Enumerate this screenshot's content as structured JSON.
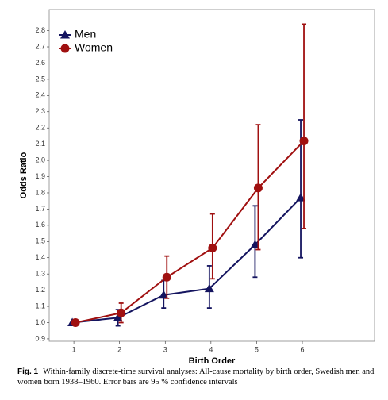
{
  "chart_data": {
    "type": "line",
    "x_label": "Birth Order",
    "y_label": "Odds Ratio",
    "x": [
      1,
      2,
      3,
      4,
      5,
      6
    ],
    "series": [
      {
        "name": "Men",
        "color": "#14145f",
        "marker": "triangle",
        "values": [
          1.0,
          1.03,
          1.17,
          1.21,
          1.48,
          1.77
        ],
        "lower": [
          null,
          0.98,
          1.09,
          1.09,
          1.28,
          1.4
        ],
        "upper": [
          null,
          1.08,
          1.26,
          1.35,
          1.72,
          2.25
        ]
      },
      {
        "name": "Women",
        "color": "#a01010",
        "marker": "circle",
        "values": [
          1.0,
          1.06,
          1.28,
          1.46,
          1.83,
          2.12
        ],
        "lower": [
          null,
          1.0,
          1.15,
          1.27,
          1.45,
          1.58
        ],
        "upper": [
          null,
          1.12,
          1.41,
          1.67,
          2.22,
          2.84
        ]
      }
    ],
    "xlim": [
      0.46,
      7.58
    ],
    "xticks": [
      1,
      2,
      3,
      4,
      5,
      6
    ],
    "ylim": [
      0.885,
      2.93
    ],
    "yticks": [
      0.9,
      {
        "value": 1,
        "label": "1.0"
      },
      1.1,
      1.2,
      1.3,
      1.4,
      1.5,
      1.6,
      1.7,
      1.8,
      1.9,
      {
        "value": 2,
        "label": "2.0"
      },
      2.1,
      2.2,
      2.3,
      2.4,
      2.5,
      2.6,
      2.7,
      2.8
    ],
    "legend_position": "top-left",
    "caption_label": "Fig. 1",
    "caption": "Within-family discrete-time survival analyses: All-cause mortality by birth order, Swedish men and women born 1938–1960. Error bars are 95 % confidence intervals"
  }
}
